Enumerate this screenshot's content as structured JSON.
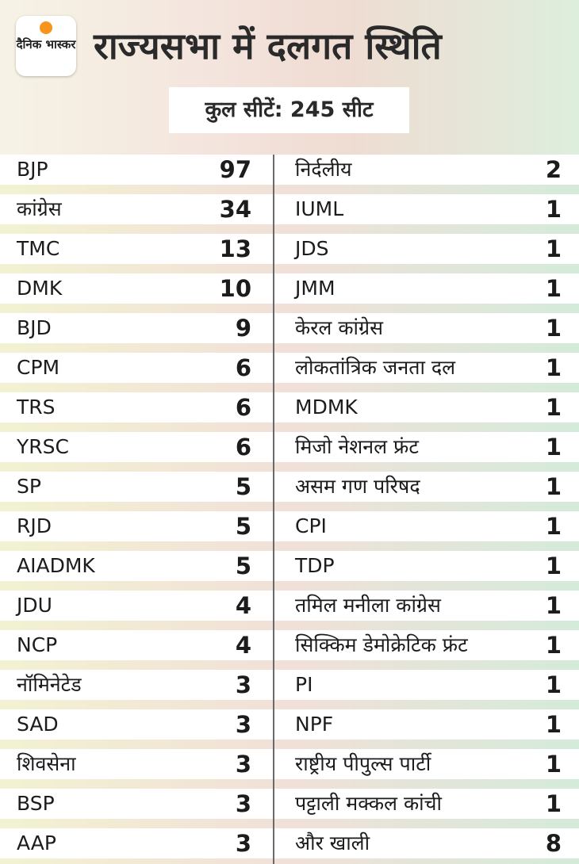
{
  "header": {
    "logo_text": "दैनिक भास्कर",
    "title": "राज्यसभा में दलगत स्थिति",
    "subtitle": "कुल सीटें: 245 सीट",
    "colors": {
      "logo_sun": "#f7941d",
      "text": "#2a2a2a"
    }
  },
  "table": {
    "left": [
      {
        "party": "BJP",
        "seats": "97"
      },
      {
        "party": "कांग्रेस",
        "seats": "34"
      },
      {
        "party": "TMC",
        "seats": "13"
      },
      {
        "party": "DMK",
        "seats": "10"
      },
      {
        "party": "BJD",
        "seats": "9"
      },
      {
        "party": "CPM",
        "seats": "6"
      },
      {
        "party": "TRS",
        "seats": "6"
      },
      {
        "party": "YRSC",
        "seats": "6"
      },
      {
        "party": "SP",
        "seats": "5"
      },
      {
        "party": "RJD",
        "seats": "5"
      },
      {
        "party": "AIADMK",
        "seats": "5"
      },
      {
        "party": "JDU",
        "seats": "4"
      },
      {
        "party": "NCP",
        "seats": "4"
      },
      {
        "party": "नॉमिनेटेड",
        "seats": "3"
      },
      {
        "party": "SAD",
        "seats": "3"
      },
      {
        "party": "शिवसेना",
        "seats": "3"
      },
      {
        "party": "BSP",
        "seats": "3"
      },
      {
        "party": "AAP",
        "seats": "3"
      }
    ],
    "right": [
      {
        "party": "निर्दलीय",
        "seats": "2"
      },
      {
        "party": "IUML",
        "seats": "1"
      },
      {
        "party": "JDS",
        "seats": "1"
      },
      {
        "party": "JMM",
        "seats": "1"
      },
      {
        "party": "केरल कांग्रेस",
        "seats": "1"
      },
      {
        "party": "लोकतांत्रिक जनता दल",
        "seats": "1"
      },
      {
        "party": "MDMK",
        "seats": "1"
      },
      {
        "party": "मिजो नेशनल फ्रंट",
        "seats": "1"
      },
      {
        "party": "असम गण परिषद",
        "seats": "1"
      },
      {
        "party": "CPI",
        "seats": "1"
      },
      {
        "party": "TDP",
        "seats": "1"
      },
      {
        "party": "तमिल मनीला कांग्रेस",
        "seats": "1"
      },
      {
        "party": "सिक्किम डेमोक्रेटिक फ्रंट",
        "seats": "1"
      },
      {
        "party": "PI",
        "seats": "1"
      },
      {
        "party": "NPF",
        "seats": "1"
      },
      {
        "party": "राष्ट्रीय पीपुल्स पार्टी",
        "seats": "1"
      },
      {
        "party": "पट्टाली मक्कल कांची",
        "seats": "1"
      },
      {
        "party": "और खाली",
        "seats": "8"
      }
    ]
  }
}
